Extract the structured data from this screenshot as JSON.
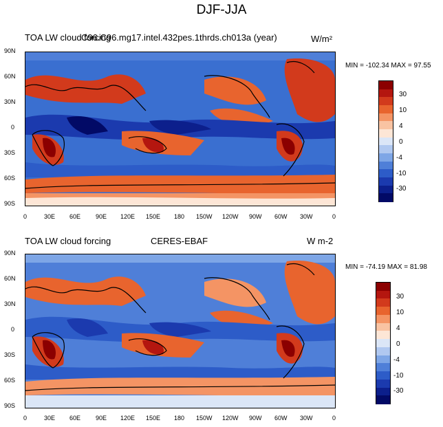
{
  "page": {
    "title": "DJF-JJA"
  },
  "panels": [
    {
      "left_title": "TOA LW cloud forcing",
      "center_title": "C96.C96.mg17.intel.432pes.1thrds.ch013a (year)",
      "units": "W/m²",
      "minmax_text": "MIN = -102.34  MAX =  97.55"
    },
    {
      "left_title": "TOA LW cloud forcing",
      "center_title": "CERES-EBAF",
      "units": "W m-2",
      "minmax_text": "MIN = -74.19  MAX =  81.98"
    }
  ],
  "chart_data": [
    {
      "type": "heatmap",
      "title": "DJF-JJA",
      "subtitle": "C96.C96.mg17.intel.432pes.1thrds.ch013a (year)",
      "variable": "TOA LW cloud forcing",
      "units": "W/m²",
      "min": -102.34,
      "max": 97.55,
      "xlim": [
        0,
        360
      ],
      "ylim": [
        -90,
        90
      ],
      "x_tick_labels": [
        "0",
        "30E",
        "60E",
        "90E",
        "120E",
        "150E",
        "180",
        "150W",
        "120W",
        "90W",
        "60W",
        "30W",
        "0"
      ],
      "y_tick_labels": [
        "90N",
        "60N",
        "30N",
        "0",
        "30S",
        "60S",
        "90S"
      ],
      "colorbar_labels": [
        "30",
        "10",
        "4",
        "0",
        "-4",
        "-10",
        "-30"
      ],
      "grid": false
    },
    {
      "type": "heatmap",
      "title": "DJF-JJA",
      "subtitle": "CERES-EBAF",
      "variable": "TOA LW cloud forcing",
      "units": "W m-2",
      "min": -74.19,
      "max": 81.98,
      "xlim": [
        0,
        360
      ],
      "ylim": [
        -90,
        90
      ],
      "x_tick_labels": [
        "0",
        "30E",
        "60E",
        "90E",
        "120E",
        "150E",
        "180",
        "150W",
        "120W",
        "90W",
        "60W",
        "30W",
        "0"
      ],
      "y_tick_labels": [
        "90N",
        "60N",
        "30N",
        "0",
        "30S",
        "60S",
        "90S"
      ],
      "colorbar_labels": [
        "30",
        "10",
        "4",
        "0",
        "-4",
        "-10",
        "-30"
      ],
      "grid": false
    }
  ],
  "colorbar_colors": [
    "#8b0000",
    "#b4160f",
    "#d23a1c",
    "#e8642e",
    "#f49464",
    "#f9c3a2",
    "#fde6d6",
    "#dbe6f7",
    "#b0c8f0",
    "#7ea6e6",
    "#4f7fd8",
    "#2d5cc8",
    "#1b3aae",
    "#0c1f8c",
    "#020a66"
  ]
}
